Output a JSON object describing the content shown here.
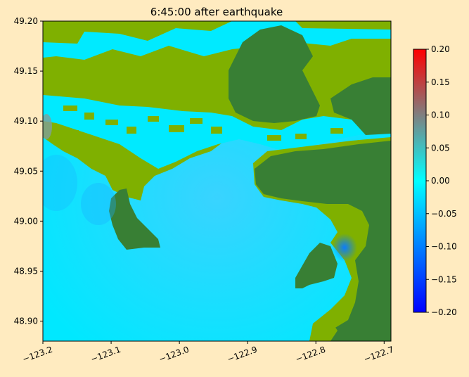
{
  "chart_data": {
    "type": "heatmap",
    "title": "6:45:00 after earthquake",
    "xlabel": "",
    "ylabel": "",
    "xlim": [
      -123.2,
      -122.69
    ],
    "ylim": [
      48.88,
      49.2
    ],
    "xticks": [
      -123.2,
      -123.1,
      -123.0,
      -122.9,
      -122.8,
      -122.7
    ],
    "xtick_labels": [
      "−123.2",
      "−123.1",
      "−123.0",
      "−122.9",
      "−122.8",
      "−122.7"
    ],
    "yticks": [
      48.9,
      48.95,
      49.0,
      49.05,
      49.1,
      49.15,
      49.2
    ],
    "ytick_labels": [
      "48.90",
      "48.95",
      "49.00",
      "49.05",
      "49.10",
      "49.15",
      "49.20"
    ],
    "colorbar": {
      "range": [
        -0.2,
        0.2
      ],
      "ticks": [
        0.2,
        0.15,
        0.1,
        0.05,
        0.0,
        -0.05,
        -0.1,
        -0.15,
        -0.2
      ],
      "tick_labels": [
        "0.20",
        "0.15",
        "0.10",
        "0.05",
        "0.00",
        "−0.05",
        "−0.10",
        "−0.15",
        "−0.20"
      ],
      "colors": [
        "#0000FF",
        "#00FFFF",
        "#FF0000"
      ]
    },
    "colors": {
      "water": "#00E5FF",
      "water_deep": "#0090FF",
      "lowland": "#7FB000",
      "upland": "#387F34"
    },
    "grid": false
  }
}
